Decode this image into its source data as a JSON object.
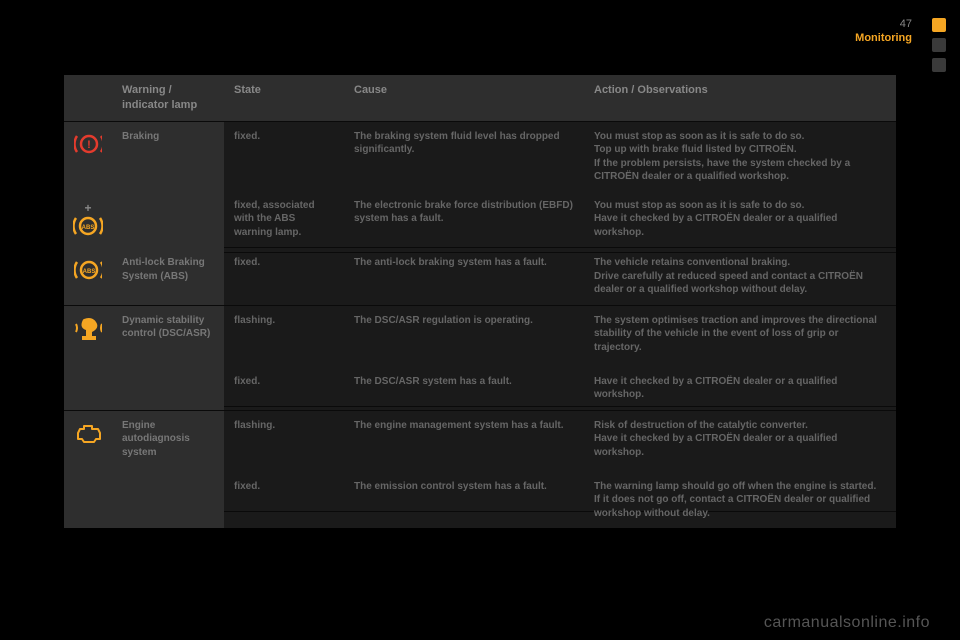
{
  "page_number": "47",
  "section": "Monitoring",
  "watermark": "carmanualsonline.info",
  "colors": {
    "bg": "#000000",
    "panel": "#1a1a1a",
    "header_bg": "#2e2e2e",
    "text": "#666666",
    "accent": "#f5a623",
    "red": "#e43b2d",
    "amber": "#f5a623",
    "tab_active": "#f5a623",
    "tab_inactive": "#3a3a3a"
  },
  "headers": {
    "lamp": "Warning / indicator lamp",
    "state": "State",
    "cause": "Cause",
    "action": "Action / Observations"
  },
  "rows": [
    {
      "icon": "brake-red",
      "lamp": "Braking",
      "state": "fixed.",
      "cause": "The braking system fluid level has dropped significantly.",
      "action": "You must stop as soon as it is safe to do so.\nTop up with brake fluid listed by CITROËN.\nIf the problem persists, have the system checked by a CITROËN dealer or a qualified workshop.",
      "lamp_rowspan": 2
    },
    {
      "icon": "plus-abs-amber",
      "lamp": "",
      "state": "fixed, associated with the ABS warning lamp.",
      "cause": "The electronic brake force distribution (EBFD) system has a fault.",
      "action": "You must stop as soon as it is safe to do so.\nHave it checked by a CITROËN dealer or a qualified workshop."
    },
    {
      "icon": "abs-amber",
      "lamp": "Anti-lock Braking System (ABS)",
      "state": "fixed.",
      "cause": "The anti-lock braking system has a fault.",
      "action": "The vehicle retains conventional braking.\nDrive carefully at reduced speed and contact a CITROËN dealer or a qualified workshop without delay."
    },
    {
      "icon": "dsc-amber",
      "lamp": "Dynamic stability control (DSC/ASR)",
      "state": "flashing.",
      "cause": "The DSC/ASR regulation is operating.",
      "action": "The system optimises traction and improves the directional stability of the vehicle in the event of loss of grip or trajectory.",
      "lamp_rowspan": 2
    },
    {
      "icon": "",
      "lamp": "",
      "state": "fixed.",
      "cause": "The DSC/ASR system has a fault.",
      "action": "Have it checked by a CITROËN dealer or a qualified workshop."
    },
    {
      "icon": "engine-amber",
      "lamp": "Engine autodiagnosis system",
      "state": "flashing.",
      "cause": "The engine management system has a fault.",
      "action": "Risk of destruction of the catalytic converter.\nHave it checked by a CITROËN dealer or a qualified workshop.",
      "lamp_rowspan": 2
    },
    {
      "icon": "",
      "lamp": "",
      "state": "fixed.",
      "cause": "The emission control system has a fault.",
      "action": "The warning lamp should go off when the engine is started.\nIf it does not go off, contact a CITROËN dealer or qualified workshop without delay."
    }
  ]
}
